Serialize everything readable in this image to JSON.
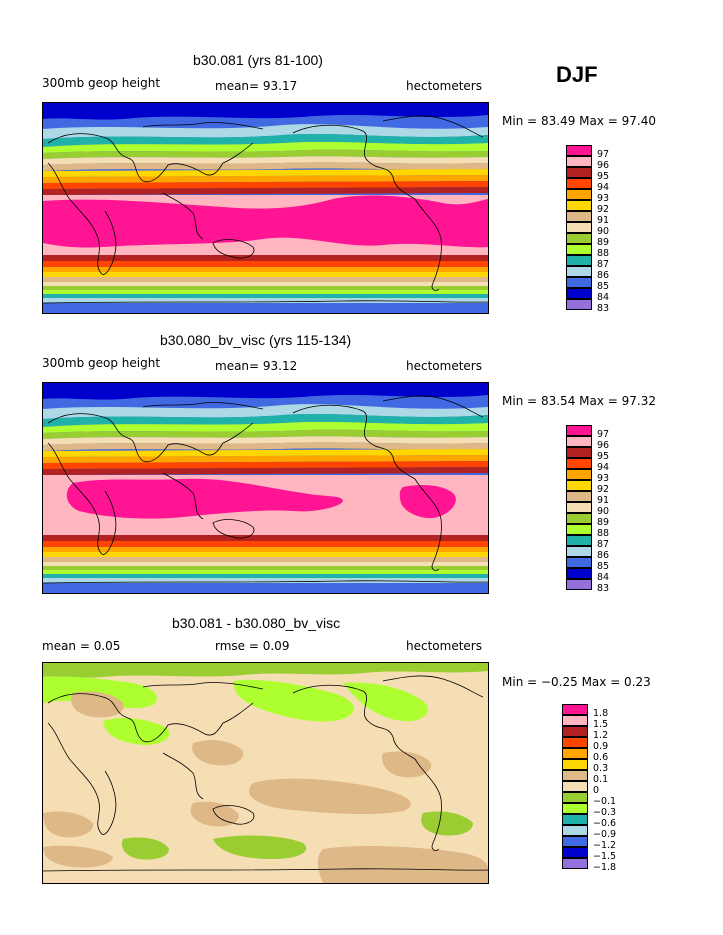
{
  "season": "DJF",
  "panels": [
    {
      "title": "b30.081 (yrs 81-100)",
      "left_label": "300mb geop height",
      "mid_label": "mean=  93.17",
      "right_label": "hectometers",
      "minmax": "Min =  83.49 Max =  97.40",
      "legend_labels": [
        "97",
        "96",
        "95",
        "94",
        "93",
        "92",
        "91",
        "90",
        "89",
        "88",
        "87",
        "86",
        "85",
        "84",
        "83"
      ]
    },
    {
      "title": "b30.080_bv_visc (yrs 115-134)",
      "left_label": "300mb geop height",
      "mid_label": "mean=  93.12",
      "right_label": "hectometers",
      "minmax": "Min =  83.54 Max =  97.32",
      "legend_labels": [
        "97",
        "96",
        "95",
        "94",
        "93",
        "92",
        "91",
        "90",
        "89",
        "88",
        "87",
        "86",
        "85",
        "84",
        "83"
      ]
    },
    {
      "title": "b30.081 - b30.080_bv_visc",
      "left_label": "mean =   0.05",
      "mid_label": "rmse =   0.09",
      "right_label": "hectometers",
      "minmax": "Min =  −0.25 Max =    0.23",
      "legend_labels": [
        "1.8",
        "1.5",
        "1.2",
        "0.9",
        "0.6",
        "0.3",
        "0.1",
        "0",
        "−0.1",
        "−0.3",
        "−0.6",
        "−0.9",
        "−1.2",
        "−1.5",
        "−1.8"
      ]
    }
  ],
  "colors": {
    "legend": [
      "#ff1493",
      "#ffb6c1",
      "#b22222",
      "#ff4500",
      "#ffa500",
      "#ffd700",
      "#deb887",
      "#f5deb3",
      "#9acd32",
      "#adff2f",
      "#20b2aa",
      "#add8e6",
      "#4169e1",
      "#0000cd",
      "#9370db"
    ]
  }
}
